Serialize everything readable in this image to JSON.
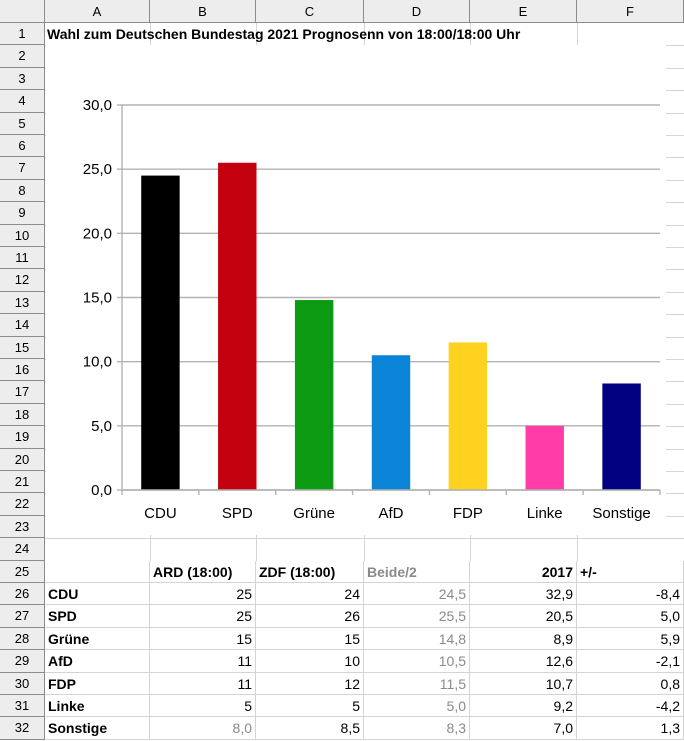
{
  "columns": [
    "A",
    "B",
    "C",
    "D",
    "E",
    "F"
  ],
  "rows": [
    "1",
    "2",
    "3",
    "4",
    "5",
    "6",
    "7",
    "8",
    "9",
    "10",
    "11",
    "12",
    "13",
    "14",
    "15",
    "16",
    "17",
    "18",
    "19",
    "20",
    "21",
    "22",
    "23",
    "24",
    "25",
    "26",
    "27",
    "28",
    "29",
    "30",
    "31",
    "32"
  ],
  "title": "Wahl zum Deutschen Bundestag 2021 Prognosenn von 18:00/18:00 Uhr",
  "table": {
    "headers": [
      "",
      "ARD (18:00)",
      "ZDF (18:00)",
      "Beide/2",
      "2017",
      "+/-"
    ],
    "rows": [
      {
        "party": "CDU",
        "ard": "25",
        "zdf": "24",
        "avg": "24,5",
        "y2017": "32,9",
        "diff": "-8,4"
      },
      {
        "party": "SPD",
        "ard": "25",
        "zdf": "26",
        "avg": "25,5",
        "y2017": "20,5",
        "diff": "5,0"
      },
      {
        "party": "Grüne",
        "ard": "15",
        "zdf": "15",
        "avg": "14,8",
        "y2017": "8,9",
        "diff": "5,9"
      },
      {
        "party": "AfD",
        "ard": "11",
        "zdf": "10",
        "avg": "10,5",
        "y2017": "12,6",
        "diff": "-2,1"
      },
      {
        "party": "FDP",
        "ard": "11",
        "zdf": "12",
        "avg": "11,5",
        "y2017": "10,7",
        "diff": "0,8"
      },
      {
        "party": "Linke",
        "ard": "5",
        "zdf": "5",
        "avg": "5,0",
        "y2017": "9,2",
        "diff": "-4,2"
      },
      {
        "party": "Sonstige",
        "ard": "8,0",
        "zdf": "8,5",
        "avg": "8,3",
        "y2017": "7,0",
        "diff": "1,3"
      }
    ]
  },
  "chart_data": {
    "type": "bar",
    "categories": [
      "CDU",
      "SPD",
      "Grüne",
      "AfD",
      "FDP",
      "Linke",
      "Sonstige"
    ],
    "values": [
      24.5,
      25.5,
      14.8,
      10.5,
      11.5,
      5.0,
      8.3
    ],
    "colors": [
      "#000000",
      "#c3000e",
      "#0b9a11",
      "#0a84d6",
      "#ffd21f",
      "#ff3ca8",
      "#000080"
    ],
    "yticks": [
      "0,0",
      "5,0",
      "10,0",
      "15,0",
      "20,0",
      "25,0",
      "30,0"
    ],
    "ylim": [
      0,
      30
    ],
    "grid": true,
    "title": "",
    "xlabel": "",
    "ylabel": ""
  }
}
